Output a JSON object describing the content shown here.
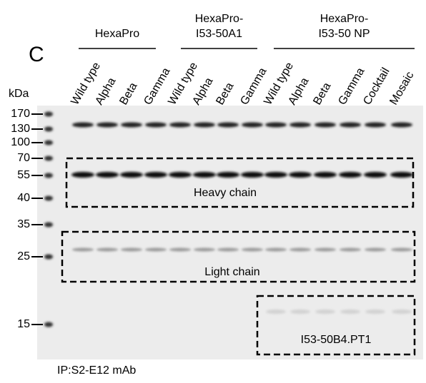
{
  "panel_label": "C",
  "axis_unit": "kDa",
  "groups": [
    {
      "label_lines": [
        "HexaPro"
      ],
      "lanes": [
        "Wild type",
        "Alpha",
        "Beta",
        "Gamma"
      ]
    },
    {
      "label_lines": [
        "HexaPro-",
        "I53-50A1"
      ],
      "lanes": [
        "Wild type",
        "Alpha",
        "Beta",
        "Gamma"
      ]
    },
    {
      "label_lines": [
        "HexaPro-",
        "I53-50 NP"
      ],
      "lanes": [
        "Wild type",
        "Alpha",
        "Beta",
        "Gamma",
        "Cocktail",
        "Mosaic"
      ]
    }
  ],
  "markers": [
    170,
    130,
    100,
    70,
    55,
    40,
    35,
    25,
    15
  ],
  "regions": [
    {
      "label": "Heavy chain"
    },
    {
      "label": "Light chain"
    },
    {
      "label": "I53-50B4.PT1"
    }
  ],
  "footer": "IP:S2-E12 mAb"
}
